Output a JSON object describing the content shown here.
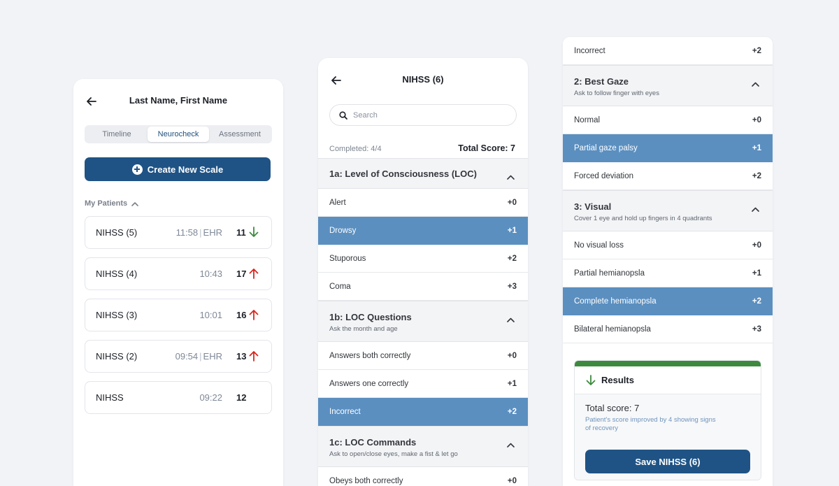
{
  "colors": {
    "primary": "#1f5385",
    "selected_row": "#5b8fc0",
    "trend_up": "#d8261d",
    "trend_down": "#3d8a3e",
    "results_bar": "#3d8a3e"
  },
  "patient_screen": {
    "title": "Last Name, First Name",
    "back_icon": "arrow-left-icon",
    "tabs": [
      {
        "label": "Timeline",
        "active": false
      },
      {
        "label": "Neurocheck",
        "active": true
      },
      {
        "label": "Assessment",
        "active": false
      }
    ],
    "create_button": "Create New Scale",
    "section_label": "My Patients",
    "patients": [
      {
        "name": "NIHSS (5)",
        "time": "11:58",
        "source": "EHR",
        "score": "11",
        "trend": "down"
      },
      {
        "name": "NIHSS (4)",
        "time": "10:43",
        "source": "",
        "score": "17",
        "trend": "up"
      },
      {
        "name": "NIHSS (3)",
        "time": "10:01",
        "source": "",
        "score": "16",
        "trend": "up"
      },
      {
        "name": "NIHSS (2)",
        "time": "09:54",
        "source": "EHR",
        "score": "13",
        "trend": "up"
      },
      {
        "name": "NIHSS",
        "time": "09:22",
        "source": "",
        "score": "12",
        "trend": "none"
      }
    ]
  },
  "scale_screen": {
    "title": "NIHSS (6)",
    "search_placeholder": "Search",
    "completed": "Completed:  4/4",
    "total_score": "Total Score: 7",
    "sections": [
      {
        "title": "1a: Level of Consciousness (LOC)",
        "subtitle": "",
        "options": [
          {
            "label": "Alert",
            "points": "+0",
            "selected": false
          },
          {
            "label": "Drowsy",
            "points": "+1",
            "selected": true
          },
          {
            "label": "Stuporous",
            "points": "+2",
            "selected": false
          },
          {
            "label": "Coma",
            "points": "+3",
            "selected": false
          }
        ]
      },
      {
        "title": "1b: LOC Questions",
        "subtitle": "Ask the month and age",
        "options": [
          {
            "label": "Answers both correctly",
            "points": "+0",
            "selected": false
          },
          {
            "label": "Answers one correctly",
            "points": "+1",
            "selected": false
          },
          {
            "label": "Incorrect",
            "points": "+2",
            "selected": true
          }
        ]
      },
      {
        "title": "1c: LOC Commands",
        "subtitle": "Ask to open/close eyes, make a fist & let go",
        "options": [
          {
            "label": "Obeys both correctly",
            "points": "+0",
            "selected": false
          }
        ]
      }
    ]
  },
  "detail_screen": {
    "top_option": {
      "label": "Incorrect",
      "points": "+2",
      "selected": false
    },
    "sections": [
      {
        "title": "2: Best Gaze",
        "subtitle": "Ask to follow finger with eyes",
        "options": [
          {
            "label": "Normal",
            "points": "+0",
            "selected": false
          },
          {
            "label": "Partial gaze palsy",
            "points": "+1",
            "selected": true
          },
          {
            "label": "Forced deviation",
            "points": "+2",
            "selected": false
          }
        ]
      },
      {
        "title": "3: Visual",
        "subtitle": "Cover 1 eye and hold up fingers in 4 quadrants",
        "options": [
          {
            "label": "No visual loss",
            "points": "+0",
            "selected": false
          },
          {
            "label": "Partial hemianopsla",
            "points": "+1",
            "selected": false
          },
          {
            "label": "Complete hemianopsla",
            "points": "+2",
            "selected": true
          },
          {
            "label": "Bilateral hemianopsla",
            "points": "+3",
            "selected": false
          }
        ]
      }
    ],
    "results": {
      "title": "Results",
      "score_text": "Total score: 7",
      "note": "Patient's score improved by 4 showing signs of recovery",
      "save_button": "Save NIHSS (6)"
    }
  }
}
